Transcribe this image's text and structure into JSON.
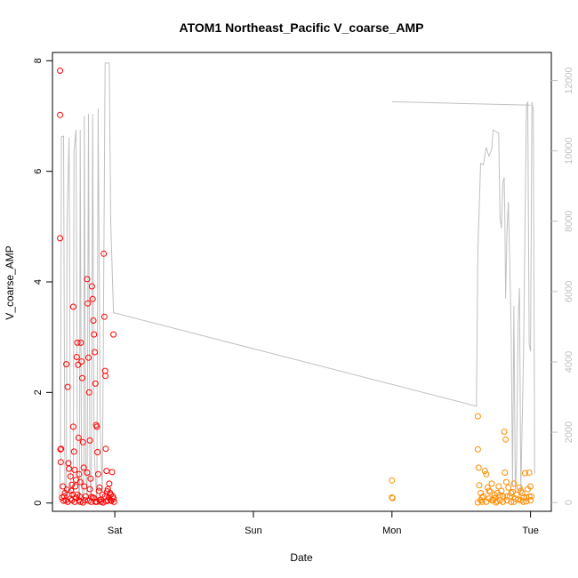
{
  "chart_data": {
    "type": "scatter",
    "title": "ATOM1 Northeast_Pacific V_coarse_AMP",
    "xlabel": "Date",
    "ylabel": "V_coarse_AMP",
    "x_unit": "days since Sat 00:00",
    "xlim": [
      -0.45,
      3.15
    ],
    "ylim": [
      -0.15,
      8.15
    ],
    "y2lim": [
      -250,
      12800
    ],
    "x_ticks": [
      {
        "x": 0,
        "label": "Sat"
      },
      {
        "x": 1,
        "label": "Sun"
      },
      {
        "x": 2,
        "label": "Mon"
      },
      {
        "x": 3,
        "label": "Tue"
      }
    ],
    "y_ticks": [
      {
        "y": 0,
        "label": "0"
      },
      {
        "y": 2,
        "label": "2"
      },
      {
        "y": 4,
        "label": "4"
      },
      {
        "y": 6,
        "label": "6"
      },
      {
        "y": 8,
        "label": "8"
      }
    ],
    "y2_ticks": [
      {
        "y": 0,
        "label": "0"
      },
      {
        "y": 2000,
        "label": "2000"
      },
      {
        "y": 4000,
        "label": "4000"
      },
      {
        "y": 6000,
        "label": "6000"
      },
      {
        "y": 8000,
        "label": "8000"
      },
      {
        "y": 10000,
        "label": "10000"
      },
      {
        "y": 12000,
        "label": "12000"
      }
    ],
    "colors": {
      "series_early": "#ff0000",
      "series_late": "#ff8c00",
      "secondary_line": "#c0c0c0",
      "right_axis": "#c0c0c0",
      "axis": "#000000"
    },
    "series": [
      {
        "color": "#ff0000",
        "points": [
          [
            -0.395,
            7.82
          ],
          [
            -0.395,
            7.02
          ],
          [
            -0.395,
            4.79
          ],
          [
            -0.392,
            0.97
          ],
          [
            -0.388,
            0.98
          ],
          [
            -0.39,
            0.74
          ],
          [
            -0.375,
            0.3
          ],
          [
            -0.38,
            0.1
          ],
          [
            -0.36,
            0.18
          ],
          [
            -0.355,
            0.05
          ],
          [
            -0.35,
            2.51
          ],
          [
            -0.34,
            2.1
          ],
          [
            -0.335,
            0.72
          ],
          [
            -0.33,
            0.62
          ],
          [
            -0.32,
            0.48
          ],
          [
            -0.315,
            0.22
          ],
          [
            -0.31,
            0.05
          ],
          [
            -0.305,
            0.15
          ],
          [
            -0.3,
            3.55
          ],
          [
            -0.3,
            1.38
          ],
          [
            -0.295,
            0.93
          ],
          [
            -0.29,
            0.6
          ],
          [
            -0.285,
            0.3
          ],
          [
            -0.28,
            0.1
          ],
          [
            -0.275,
            2.64
          ],
          [
            -0.27,
            2.9
          ],
          [
            -0.265,
            2.5
          ],
          [
            -0.262,
            1.18
          ],
          [
            -0.258,
            0.52
          ],
          [
            -0.255,
            0.12
          ],
          [
            -0.25,
            0.38
          ],
          [
            -0.245,
            2.9
          ],
          [
            -0.24,
            2.56
          ],
          [
            -0.235,
            2.26
          ],
          [
            -0.23,
            1.1
          ],
          [
            -0.225,
            0.64
          ],
          [
            -0.22,
            0.3
          ],
          [
            -0.215,
            0.05
          ],
          [
            -0.2,
            4.05
          ],
          [
            -0.195,
            3.61
          ],
          [
            -0.19,
            2.63
          ],
          [
            -0.185,
            2.0
          ],
          [
            -0.18,
            1.13
          ],
          [
            -0.175,
            0.44
          ],
          [
            -0.17,
            0.11
          ],
          [
            -0.165,
            3.92
          ],
          [
            -0.16,
            3.69
          ],
          [
            -0.155,
            3.3
          ],
          [
            -0.15,
            3.05
          ],
          [
            -0.145,
            2.73
          ],
          [
            -0.14,
            2.16
          ],
          [
            -0.135,
            1.41
          ],
          [
            -0.13,
            1.38
          ],
          [
            -0.125,
            0.92
          ],
          [
            -0.12,
            0.52
          ],
          [
            -0.115,
            0.22
          ],
          [
            -0.11,
            0.05
          ],
          [
            -0.08,
            4.51
          ],
          [
            -0.075,
            3.37
          ],
          [
            -0.07,
            2.39
          ],
          [
            -0.068,
            2.3
          ],
          [
            -0.065,
            0.98
          ],
          [
            -0.06,
            0.58
          ],
          [
            -0.055,
            0.21
          ],
          [
            -0.05,
            0.05
          ],
          [
            -0.04,
            0.35
          ],
          [
            -0.035,
            0.18
          ],
          [
            -0.03,
            0.05
          ],
          [
            -0.02,
            0.56
          ],
          [
            -0.015,
            0.12
          ],
          [
            -0.01,
            3.05
          ],
          [
            -0.005,
            0.02
          ],
          [
            -0.34,
            0.02
          ],
          [
            -0.32,
            0.08
          ],
          [
            -0.29,
            0.02
          ],
          [
            -0.26,
            0.05
          ],
          [
            -0.23,
            0.01
          ],
          [
            -0.21,
            0.12
          ],
          [
            -0.19,
            0.04
          ],
          [
            -0.17,
            0.02
          ],
          [
            -0.15,
            0.09
          ],
          [
            -0.13,
            0.02
          ],
          [
            -0.1,
            0.06
          ],
          [
            -0.09,
            0.15
          ],
          [
            -0.085,
            0.01
          ],
          [
            -0.06,
            0.03
          ],
          [
            -0.045,
            0.1
          ],
          [
            -0.025,
            0.04
          ],
          [
            -0.008,
            0.08
          ],
          [
            -0.37,
            0.04
          ],
          [
            -0.365,
            0.12
          ],
          [
            -0.345,
            0.24
          ],
          [
            -0.31,
            0.33
          ],
          [
            -0.28,
            0.42
          ],
          [
            -0.27,
            0.15
          ],
          [
            -0.25,
            0.02
          ],
          [
            -0.2,
            0.55
          ],
          [
            -0.18,
            0.25
          ],
          [
            -0.16,
            0.1
          ],
          [
            -0.14,
            0.02
          ],
          [
            -0.11,
            0.28
          ],
          [
            -0.1,
            0.02
          ],
          [
            -0.07,
            0.12
          ],
          [
            -0.05,
            0.25
          ],
          [
            -0.03,
            0.15
          ]
        ]
      },
      {
        "color": "#ff8c00",
        "points": [
          [
            2.0,
            0.41
          ],
          [
            2.0,
            0.1
          ],
          [
            2.003,
            0.09
          ],
          [
            2.62,
            1.57
          ],
          [
            2.62,
            0.97
          ],
          [
            2.625,
            0.64
          ],
          [
            2.63,
            0.32
          ],
          [
            2.64,
            0.18
          ],
          [
            2.64,
            0.05
          ],
          [
            2.65,
            0.02
          ],
          [
            2.66,
            0.12
          ],
          [
            2.67,
            0.58
          ],
          [
            2.68,
            0.52
          ],
          [
            2.69,
            0.28
          ],
          [
            2.7,
            0.08
          ],
          [
            2.71,
            0.2
          ],
          [
            2.72,
            0.35
          ],
          [
            2.73,
            0.05
          ],
          [
            2.74,
            0.15
          ],
          [
            2.75,
            0.01
          ],
          [
            2.76,
            0.18
          ],
          [
            2.77,
            0.3
          ],
          [
            2.78,
            0.05
          ],
          [
            2.79,
            0.22
          ],
          [
            2.8,
            0.12
          ],
          [
            2.81,
            1.29
          ],
          [
            2.815,
            0.55
          ],
          [
            2.82,
            1.15
          ],
          [
            2.825,
            0.38
          ],
          [
            2.83,
            0.05
          ],
          [
            2.84,
            0.28
          ],
          [
            2.85,
            0.12
          ],
          [
            2.86,
            0.02
          ],
          [
            2.87,
            0.2
          ],
          [
            2.88,
            0.35
          ],
          [
            2.89,
            0.08
          ],
          [
            2.9,
            0.15
          ],
          [
            2.92,
            0.28
          ],
          [
            2.93,
            0.05
          ],
          [
            2.94,
            0.18
          ],
          [
            2.95,
            0.02
          ],
          [
            2.96,
            0.54
          ],
          [
            2.97,
            0.1
          ],
          [
            2.98,
            0.25
          ],
          [
            2.99,
            0.55
          ],
          [
            3.0,
            0.3
          ],
          [
            3.005,
            0.12
          ],
          [
            2.62,
            0.01
          ],
          [
            2.65,
            0.1
          ],
          [
            2.68,
            0.02
          ],
          [
            2.7,
            0.22
          ],
          [
            2.72,
            0.05
          ],
          [
            2.74,
            0.09
          ],
          [
            2.76,
            0.03
          ],
          [
            2.78,
            0.14
          ],
          [
            2.8,
            0.02
          ],
          [
            2.83,
            0.12
          ],
          [
            2.86,
            0.18
          ],
          [
            2.88,
            0.02
          ],
          [
            2.91,
            0.06
          ],
          [
            2.93,
            0.22
          ],
          [
            2.95,
            0.1
          ],
          [
            2.97,
            0.03
          ],
          [
            2.99,
            0.12
          ],
          [
            3.0,
            0.05
          ]
        ]
      }
    ],
    "secondary_line": {
      "color": "#c0c0c0",
      "axis": "right",
      "points": [
        [
          -0.4,
          8
        ],
        [
          -0.392,
          1200
        ],
        [
          -0.385,
          10400
        ],
        [
          -0.37,
          10420
        ],
        [
          -0.36,
          200
        ],
        [
          -0.35,
          0
        ],
        [
          -0.345,
          8000
        ],
        [
          -0.33,
          10380
        ],
        [
          -0.32,
          400
        ],
        [
          -0.3,
          0
        ],
        [
          -0.295,
          10000
        ],
        [
          -0.28,
          10600
        ],
        [
          -0.27,
          1000
        ],
        [
          -0.255,
          0
        ],
        [
          -0.25,
          10600
        ],
        [
          -0.24,
          500
        ],
        [
          -0.225,
          0
        ],
        [
          -0.22,
          11000
        ],
        [
          -0.21,
          900
        ],
        [
          -0.2,
          50
        ],
        [
          -0.19,
          11050
        ],
        [
          -0.18,
          700
        ],
        [
          -0.17,
          0
        ],
        [
          -0.16,
          11050
        ],
        [
          -0.15,
          1500
        ],
        [
          -0.13,
          0
        ],
        [
          -0.12,
          11200
        ],
        [
          -0.105,
          2000
        ],
        [
          -0.09,
          300
        ],
        [
          -0.07,
          12500
        ],
        [
          -0.04,
          12500
        ],
        [
          -0.03,
          8000
        ],
        [
          -0.01,
          5400
        ],
        [
          2.61,
          2740
        ],
        [
          2.62,
          7200
        ],
        [
          2.64,
          9650
        ],
        [
          2.66,
          9600
        ],
        [
          2.68,
          10100
        ],
        [
          2.7,
          9850
        ],
        [
          2.72,
          10050
        ],
        [
          2.73,
          10600
        ],
        [
          2.77,
          10500
        ],
        [
          2.78,
          8100
        ],
        [
          2.79,
          7800
        ],
        [
          2.8,
          9100
        ],
        [
          2.81,
          9250
        ],
        [
          2.815,
          8000
        ],
        [
          2.82,
          5800
        ],
        [
          2.83,
          7700
        ],
        [
          2.84,
          8550
        ],
        [
          2.85,
          6800
        ],
        [
          2.86,
          4900
        ],
        [
          2.87,
          480
        ],
        [
          2.88,
          5600
        ],
        [
          2.89,
          300
        ],
        [
          2.9,
          1200
        ],
        [
          2.91,
          5100
        ],
        [
          2.92,
          6100
        ],
        [
          2.93,
          300
        ],
        [
          2.95,
          4300
        ],
        [
          2.97,
          11300
        ],
        [
          2.98,
          11400
        ],
        [
          2.99,
          4500
        ],
        [
          3.0,
          4300
        ],
        [
          3.01,
          11400
        ],
        [
          3.02,
          11150
        ],
        [
          3.03,
          800
        ]
      ],
      "extra_segments": [
        [
          [
            2.0,
            11400
          ],
          [
            3.0,
            11300
          ]
        ]
      ]
    }
  }
}
